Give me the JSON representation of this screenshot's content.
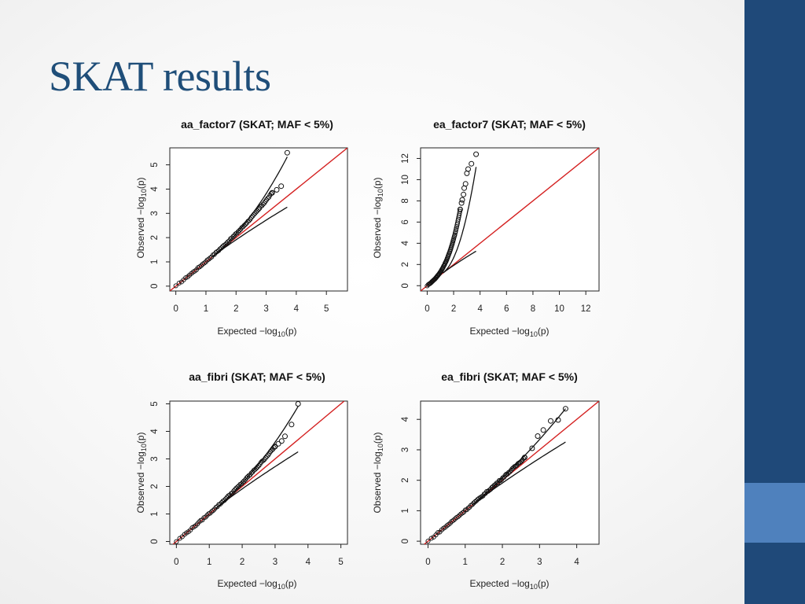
{
  "slide": {
    "title": "SKAT results"
  },
  "chart_data": [
    {
      "type": "scatter",
      "title": "aa_factor7 (SKAT; MAF < 5%)",
      "xlabel": "Expected",
      "ylabel": "Observed",
      "xticks": [
        0,
        1,
        2,
        3,
        4,
        5
      ],
      "yticks": [
        0,
        1,
        2,
        3,
        4,
        5
      ],
      "xlim": [
        -0.2,
        5.7
      ],
      "ylim": [
        -0.2,
        5.7
      ],
      "reference_color": "#d42020",
      "points": [
        [
          3.2,
          3.85
        ],
        [
          3.35,
          3.97
        ],
        [
          3.5,
          4.12
        ],
        [
          3.7,
          5.5
        ]
      ]
    },
    {
      "type": "scatter",
      "title": "ea_factor7 (SKAT; MAF < 5%)",
      "xlabel": "Expected",
      "ylabel": "Observed",
      "xticks": [
        0,
        2,
        4,
        6,
        8,
        10,
        12
      ],
      "yticks": [
        0,
        2,
        4,
        6,
        8,
        10,
        12
      ],
      "xlim": [
        -0.5,
        13
      ],
      "ylim": [
        -0.5,
        13
      ],
      "reference_color": "#d42020",
      "points": [
        [
          2.5,
          7.2
        ],
        [
          2.6,
          7.8
        ],
        [
          2.65,
          8.1
        ],
        [
          2.75,
          8.6
        ],
        [
          2.8,
          9.2
        ],
        [
          2.9,
          9.6
        ],
        [
          3.0,
          10.6
        ],
        [
          3.1,
          11.0
        ],
        [
          3.35,
          11.5
        ],
        [
          3.7,
          12.4
        ]
      ]
    },
    {
      "type": "scatter",
      "title": "aa_fibri (SKAT; MAF < 5%)",
      "xlabel": "Expected",
      "ylabel": "Observed",
      "xticks": [
        0,
        1,
        2,
        3,
        4,
        5
      ],
      "yticks": [
        0,
        1,
        2,
        3,
        4,
        5
      ],
      "xlim": [
        -0.2,
        5.2
      ],
      "ylim": [
        -0.1,
        5.1
      ],
      "reference_color": "#d42020",
      "points": [
        [
          3.0,
          3.45
        ],
        [
          3.1,
          3.55
        ],
        [
          3.2,
          3.65
        ],
        [
          3.3,
          3.82
        ],
        [
          3.5,
          4.25
        ],
        [
          3.7,
          5.0
        ]
      ]
    },
    {
      "type": "scatter",
      "title": "ea_fibri (SKAT; MAF < 5%)",
      "xlabel": "Expected",
      "ylabel": "Observed",
      "xticks": [
        0,
        1,
        2,
        3,
        4
      ],
      "yticks": [
        0,
        1,
        2,
        3,
        4
      ],
      "xlim": [
        -0.2,
        4.6
      ],
      "ylim": [
        -0.1,
        4.6
      ],
      "reference_color": "#d42020",
      "points": [
        [
          2.6,
          2.75
        ],
        [
          2.8,
          3.05
        ],
        [
          2.95,
          3.45
        ],
        [
          3.1,
          3.65
        ],
        [
          3.3,
          3.95
        ],
        [
          3.5,
          3.98
        ],
        [
          3.7,
          4.35
        ]
      ]
    }
  ]
}
